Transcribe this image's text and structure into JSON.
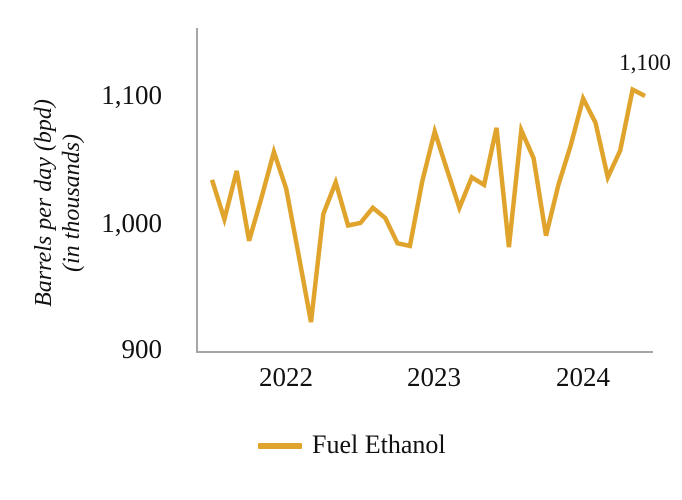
{
  "chart": {
    "y_axis": {
      "title_line1": "Barrels per day (bpd)",
      "title_line2": "(in thousands)",
      "ticks": [
        "1,100",
        "1,000",
        "900"
      ]
    },
    "x_axis": {
      "ticks": [
        "2022",
        "2023",
        "2024"
      ]
    },
    "annotation": "1,100",
    "legend": {
      "label": "Fuel Ethanol"
    },
    "colors": {
      "line": "#E0A42D",
      "axis": "#A6A6A6",
      "text": "#111111"
    }
  },
  "chart_data": {
    "type": "line",
    "title": "",
    "xlabel": "",
    "ylabel": "Barrels per day (bpd) (in thousands)",
    "ylim": [
      900,
      1150
    ],
    "yticks": [
      900,
      1000,
      1100
    ],
    "grid": false,
    "legend_position": "bottom",
    "annotation": {
      "point": "2024-12",
      "text": "1,100"
    },
    "x": [
      "2022-01",
      "2022-02",
      "2022-03",
      "2022-04",
      "2022-05",
      "2022-06",
      "2022-07",
      "2022-08",
      "2022-09",
      "2022-10",
      "2022-11",
      "2022-12",
      "2023-01",
      "2023-02",
      "2023-03",
      "2023-04",
      "2023-05",
      "2023-06",
      "2023-07",
      "2023-08",
      "2023-09",
      "2023-10",
      "2023-11",
      "2023-12",
      "2024-01",
      "2024-02",
      "2024-03",
      "2024-04",
      "2024-05",
      "2024-06",
      "2024-07",
      "2024-08",
      "2024-09",
      "2024-10",
      "2024-11",
      "2024-12"
    ],
    "x_year_labels": [
      "2022",
      "2023",
      "2024"
    ],
    "series": [
      {
        "name": "Fuel Ethanol",
        "values": [
          1034,
          1003,
          1041,
          986,
          1020,
          1056,
          1027,
          975,
          922,
          1007,
          1032,
          998,
          1000,
          1012,
          1004,
          984,
          982,
          1033,
          1072,
          1042,
          1012,
          1036,
          1030,
          1075,
          981,
          1073,
          1051,
          990,
          1030,
          1061,
          1098,
          1079,
          1036,
          1057,
          1105,
          1100
        ]
      }
    ]
  }
}
